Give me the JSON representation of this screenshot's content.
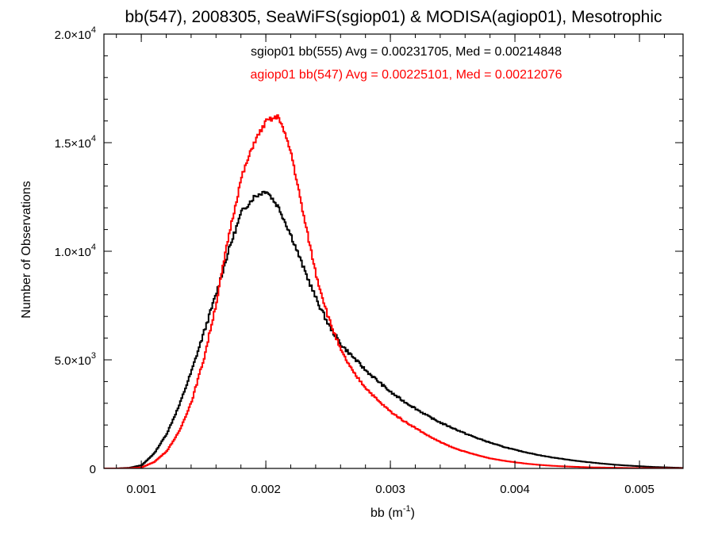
{
  "chart_data": {
    "type": "line",
    "style": "step",
    "title": "bb(547), 2008305, SeaWiFS(sgiop01) & MODISA(agiop01), Mesotrophic",
    "xlabel": "bb (m⁻¹)",
    "xlabel_base": "bb (m",
    "xlabel_sup": "-1",
    "xlabel_end": ")",
    "ylabel": "Number of Observations",
    "xlim": [
      0.0007,
      0.00535
    ],
    "ylim": [
      0,
      20000
    ],
    "x_ticks": [
      {
        "value": 0.001,
        "label": "0.001"
      },
      {
        "value": 0.002,
        "label": "0.002"
      },
      {
        "value": 0.003,
        "label": "0.003"
      },
      {
        "value": 0.004,
        "label": "0.004"
      },
      {
        "value": 0.005,
        "label": "0.005"
      }
    ],
    "y_ticks": [
      {
        "value": 0,
        "label": "0",
        "base": "0",
        "exp": ""
      },
      {
        "value": 5000,
        "label": "5.0×10^3",
        "base": "5.0×10",
        "exp": "3"
      },
      {
        "value": 10000,
        "label": "1.0×10^4",
        "base": "1.0×10",
        "exp": "4"
      },
      {
        "value": 15000,
        "label": "1.5×10^4",
        "base": "1.5×10",
        "exp": "4"
      },
      {
        "value": 20000,
        "label": "2.0×10^4",
        "base": "2.0×10",
        "exp": "4"
      }
    ],
    "x_minor_step": 0.0002,
    "y_minor_step": 1000,
    "grid": false,
    "series": [
      {
        "name": "sgiop01 bb(555)",
        "stats_text": "sgiop01 bb(555) Avg = 0.00231705, Med = 0.00214848",
        "color": "#000000",
        "x": [
          0.0007,
          0.0008,
          0.0009,
          0.001,
          0.0011,
          0.0012,
          0.0013,
          0.0014,
          0.0015,
          0.0016,
          0.0017,
          0.0018,
          0.0019,
          0.002,
          0.0021,
          0.0022,
          0.0023,
          0.0024,
          0.0025,
          0.0026,
          0.0027,
          0.0028,
          0.0029,
          0.003,
          0.0031,
          0.0032,
          0.0033,
          0.0034,
          0.0035,
          0.0036,
          0.0037,
          0.0038,
          0.0039,
          0.004,
          0.0041,
          0.0042,
          0.0043,
          0.0044,
          0.0045,
          0.0046,
          0.0047,
          0.0048,
          0.0049,
          0.005,
          0.0051,
          0.0052,
          0.0053,
          0.00535
        ],
        "values": [
          0,
          0,
          30,
          150,
          700,
          1600,
          2900,
          4500,
          6300,
          8100,
          10100,
          11800,
          12500,
          12800,
          12000,
          10700,
          9200,
          7800,
          6600,
          5700,
          5100,
          4500,
          4000,
          3500,
          3100,
          2750,
          2400,
          2100,
          1850,
          1600,
          1380,
          1180,
          1000,
          850,
          720,
          600,
          500,
          420,
          340,
          280,
          220,
          170,
          130,
          100,
          70,
          50,
          30,
          20
        ]
      },
      {
        "name": "agiop01 bb(547)",
        "stats_text": "agiop01 bb(547) Avg = 0.00225101, Med = 0.00212076",
        "color": "#ff0000",
        "x": [
          0.0007,
          0.0008,
          0.0009,
          0.001,
          0.0011,
          0.0012,
          0.0013,
          0.0014,
          0.0015,
          0.0016,
          0.0017,
          0.0018,
          0.0019,
          0.002,
          0.0021,
          0.0022,
          0.0023,
          0.0024,
          0.0025,
          0.0026,
          0.0027,
          0.0028,
          0.0029,
          0.003,
          0.0031,
          0.0032,
          0.0033,
          0.0034,
          0.0035,
          0.0036,
          0.0037,
          0.0038,
          0.0039,
          0.004,
          0.0041,
          0.0042,
          0.0043,
          0.0044,
          0.0045,
          0.0046,
          0.0047,
          0.0048,
          0.0049,
          0.005,
          0.0051,
          0.0052,
          0.0053,
          0.00535
        ],
        "values": [
          0,
          0,
          10,
          50,
          300,
          800,
          1700,
          3100,
          5100,
          7700,
          10800,
          13400,
          15000,
          16000,
          16200,
          14500,
          11600,
          8900,
          6900,
          5400,
          4400,
          3700,
          3100,
          2600,
          2200,
          1850,
          1500,
          1200,
          950,
          760,
          600,
          460,
          360,
          280,
          210,
          160,
          120,
          90,
          70,
          50,
          40,
          30,
          20,
          15,
          10,
          8,
          5,
          3
        ]
      }
    ]
  }
}
